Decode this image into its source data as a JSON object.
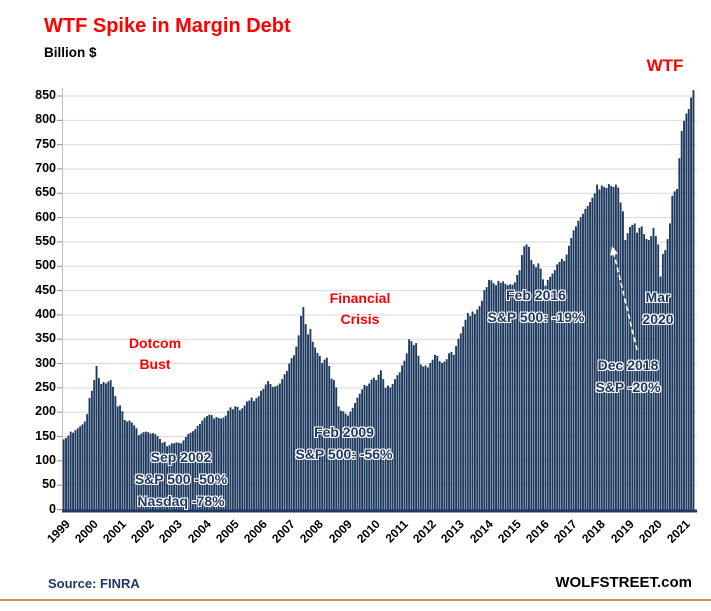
{
  "title": "WTF Spike in Margin Debt",
  "subtitle": "Billion $",
  "source_label": "Source: FINRA",
  "branding": "WOLFSTREET.com",
  "colors": {
    "bar": "#1f3a5f",
    "title_red": "#ff0000",
    "annotation_navy": "#1f3864",
    "gridline": "#d9d9d9",
    "axis": "#1f3864",
    "bottom_rule": "#c9914f"
  },
  "annotations": {
    "wtf": "WTF",
    "dotcom_bust": "Dotcom\nBust",
    "sep_2002": "Sep 2002\nS&P 500 -50%\nNasdaq -78%",
    "financial_crisis": "Financial\nCrisis",
    "feb_2009": "Feb 2009\nS&P 500: -56%",
    "feb_2016": "Feb 2016\nS&P 500: -19%",
    "dec_2018": "Dec 2018\nS&P -20%",
    "mar_2020": "Mar\n2020"
  },
  "chart_data": {
    "type": "bar",
    "title": "WTF Spike in Margin Debt",
    "ylabel": "Billion $",
    "ylim": [
      0,
      870
    ],
    "grid": "horizontal",
    "y_ticks": [
      0,
      50,
      100,
      150,
      200,
      250,
      300,
      350,
      400,
      450,
      500,
      550,
      600,
      650,
      700,
      750,
      800,
      850
    ],
    "x_ticks": [
      "1999",
      "2000",
      "2001",
      "2002",
      "2003",
      "2004",
      "2005",
      "2006",
      "2007",
      "2008",
      "2009",
      "2010",
      "2011",
      "2012",
      "2013",
      "2014",
      "2015",
      "2016",
      "2017",
      "2018",
      "2019",
      "2020",
      "2021"
    ],
    "series_name": "FINRA margin debt, billion $ (monthly)",
    "start_month": "1999-01",
    "end_month": "2021-05",
    "values": [
      144,
      147,
      152,
      160,
      158,
      163,
      167,
      171,
      175,
      181,
      196,
      229,
      244,
      266,
      295,
      270,
      258,
      262,
      259,
      263,
      266,
      252,
      233,
      212,
      214,
      202,
      184,
      181,
      183,
      179,
      173,
      167,
      153,
      156,
      159,
      160,
      159,
      156,
      157,
      155,
      151,
      145,
      137,
      139,
      130,
      132,
      136,
      136,
      138,
      137,
      136,
      142,
      149,
      155,
      158,
      161,
      165,
      172,
      176,
      183,
      189,
      192,
      195,
      194,
      187,
      190,
      188,
      187,
      189,
      193,
      203,
      210,
      206,
      212,
      211,
      204,
      208,
      214,
      222,
      224,
      230,
      223,
      229,
      233,
      244,
      248,
      257,
      264,
      258,
      252,
      253,
      255,
      259,
      268,
      278,
      285,
      300,
      311,
      317,
      335,
      358,
      398,
      416,
      381,
      360,
      371,
      345,
      333,
      322,
      316,
      301,
      308,
      312,
      295,
      269,
      266,
      251,
      212,
      203,
      202,
      197,
      193,
      201,
      209,
      219,
      230,
      238,
      247,
      256,
      254,
      259,
      267,
      271,
      266,
      277,
      286,
      268,
      250,
      255,
      251,
      258,
      268,
      276,
      282,
      296,
      306,
      321,
      350,
      346,
      338,
      342,
      316,
      298,
      294,
      296,
      292,
      301,
      308,
      318,
      316,
      305,
      301,
      304,
      309,
      321,
      324,
      318,
      336,
      351,
      362,
      376,
      390,
      404,
      398,
      407,
      402,
      411,
      418,
      429,
      451,
      457,
      472,
      471,
      465,
      461,
      470,
      466,
      469,
      464,
      461,
      463,
      462,
      467,
      482,
      492,
      523,
      541,
      545,
      540,
      513,
      504,
      498,
      506,
      495,
      473,
      460,
      472,
      478,
      485,
      492,
      504,
      509,
      515,
      511,
      524,
      542,
      558,
      574,
      582,
      593,
      601,
      608,
      618,
      624,
      632,
      641,
      650,
      668,
      658,
      666,
      663,
      661,
      669,
      665,
      663,
      668,
      662,
      631,
      613,
      554,
      568,
      581,
      585,
      588,
      569,
      579,
      582,
      566,
      556,
      554,
      562,
      579,
      562,
      545,
      479,
      525,
      533,
      556,
      588,
      645,
      654,
      659,
      722,
      778,
      799,
      814,
      823,
      847,
      862
    ]
  }
}
